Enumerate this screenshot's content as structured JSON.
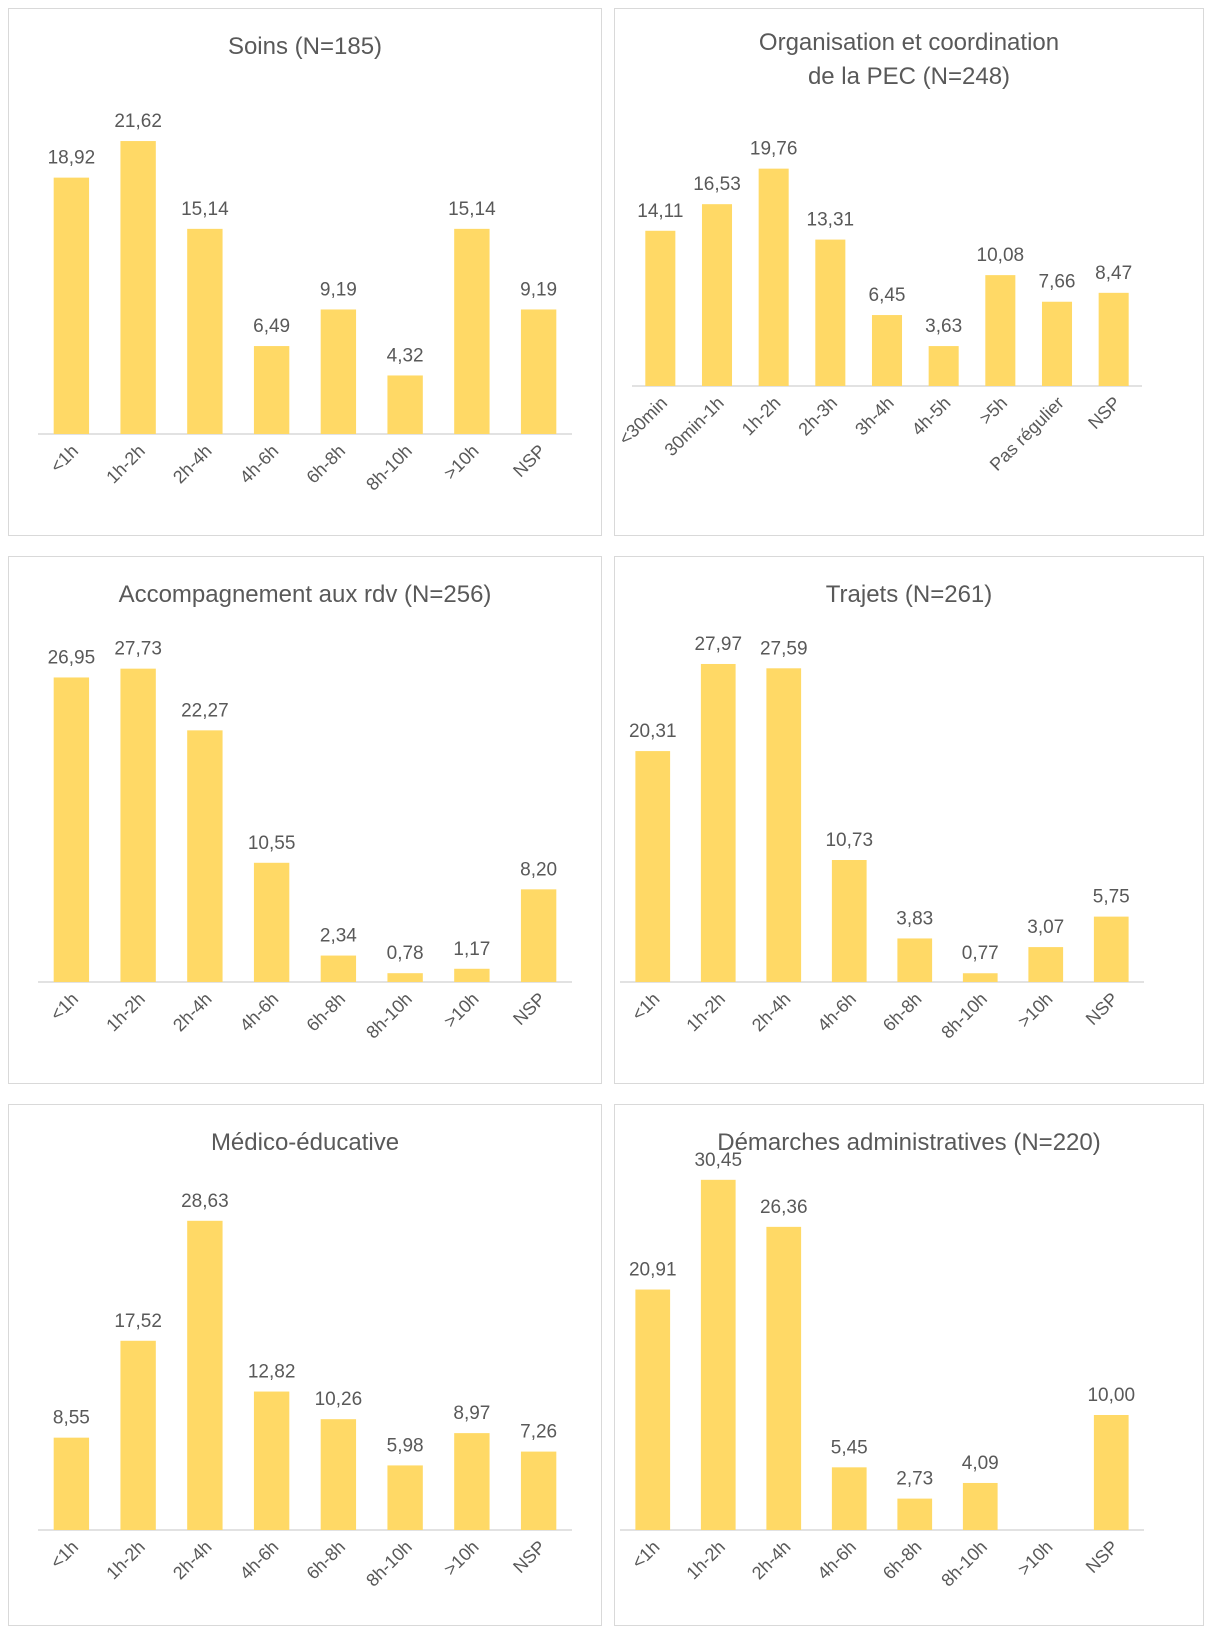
{
  "chart_data": [
    {
      "type": "bar",
      "title": "Soins (N=185)",
      "categories": [
        "<1h",
        "1h-2h",
        "2h-4h",
        "4h-6h",
        "6h-8h",
        "8h-10h",
        ">10h",
        "NSP"
      ],
      "values": [
        18.92,
        21.62,
        15.14,
        6.49,
        9.19,
        4.32,
        15.14,
        9.19
      ],
      "value_labels": [
        "18,92",
        "21,62",
        "15,14",
        "6,49",
        "9,19",
        "4,32",
        "15,14",
        "9,19"
      ],
      "color": "#ffd966"
    },
    {
      "type": "bar",
      "title": "Organisation et coordination de la PEC (N=248)",
      "categories": [
        "<30min",
        "30min-1h",
        "1h-2h",
        "2h-3h",
        "3h-4h",
        "4h-5h",
        ">5h",
        "Pas régulier",
        "NSP"
      ],
      "values": [
        14.11,
        16.53,
        19.76,
        13.31,
        6.45,
        3.63,
        10.08,
        7.66,
        8.47
      ],
      "value_labels": [
        "14,11",
        "16,53",
        "19,76",
        "13,31",
        "6,45",
        "3,63",
        "10,08",
        "7,66",
        "8,47"
      ],
      "color": "#ffd966"
    },
    {
      "type": "bar",
      "title": "Accompagnement aux rdv (N=256)",
      "categories": [
        "<1h",
        "1h-2h",
        "2h-4h",
        "4h-6h",
        "6h-8h",
        "8h-10h",
        ">10h",
        "NSP"
      ],
      "values": [
        26.95,
        27.73,
        22.27,
        10.55,
        2.34,
        0.78,
        1.17,
        8.2
      ],
      "value_labels": [
        "26,95",
        "27,73",
        "22,27",
        "10,55",
        "2,34",
        "0,78",
        "1,17",
        "8,20"
      ],
      "color": "#ffd966"
    },
    {
      "type": "bar",
      "title": "Trajets (N=261)",
      "categories": [
        "<1h",
        "1h-2h",
        "2h-4h",
        "4h-6h",
        "6h-8h",
        "8h-10h",
        ">10h",
        "NSP"
      ],
      "values": [
        20.31,
        27.97,
        27.59,
        10.73,
        3.83,
        0.77,
        3.07,
        5.75
      ],
      "value_labels": [
        "20,31",
        "27,97",
        "27,59",
        "10,73",
        "3,83",
        "0,77",
        "3,07",
        "5,75"
      ],
      "color": "#ffd966"
    },
    {
      "type": "bar",
      "title": "Médico-éducative",
      "categories": [
        "<1h",
        "1h-2h",
        "2h-4h",
        "4h-6h",
        "6h-8h",
        "8h-10h",
        ">10h",
        "NSP"
      ],
      "values": [
        8.55,
        17.52,
        28.63,
        12.82,
        10.26,
        5.98,
        8.97,
        7.26
      ],
      "value_labels": [
        "8,55",
        "17,52",
        "28,63",
        "12,82",
        "10,26",
        "5,98",
        "8,97",
        "7,26"
      ],
      "color": "#ffd966"
    },
    {
      "type": "bar",
      "title": "Démarches administratives (N=220)",
      "categories": [
        "<1h",
        "1h-2h",
        "2h-4h",
        "4h-6h",
        "6h-8h",
        "8h-10h",
        ">10h",
        "NSP"
      ],
      "values": [
        20.91,
        30.45,
        26.36,
        5.45,
        2.73,
        4.09,
        null,
        10
      ],
      "value_labels": [
        "20,91",
        "30,45",
        "26,36",
        "5,45",
        "2,73",
        "4,09",
        null,
        "10,00"
      ],
      "color": "#ffd966"
    }
  ]
}
